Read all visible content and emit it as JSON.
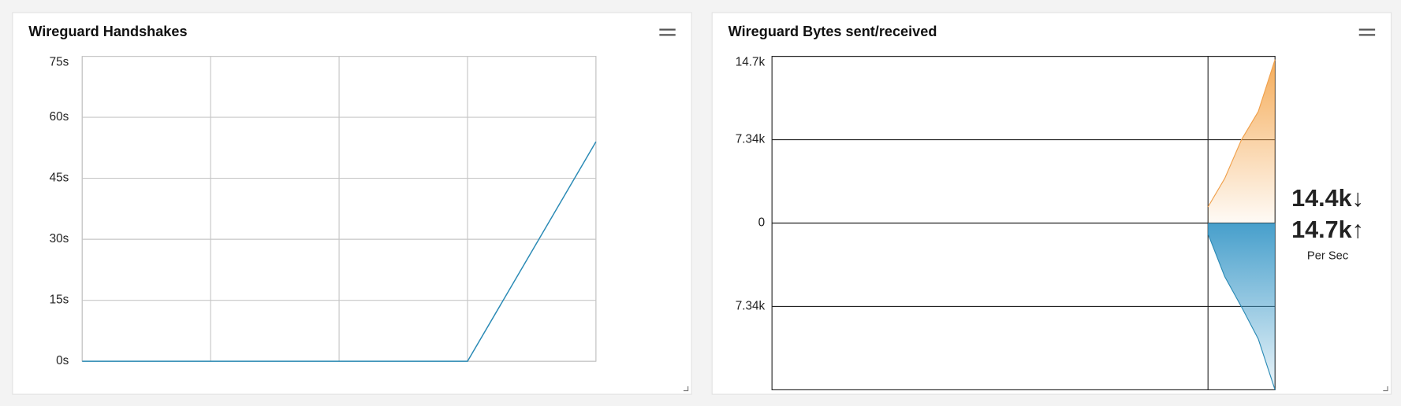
{
  "chart_data": [
    {
      "type": "line",
      "title": "Wireguard Handshakes",
      "categories": [
        null,
        null,
        null,
        null,
        null
      ],
      "series": [
        {
          "color": "#2a8ab5",
          "values": [
            0,
            0,
            0,
            0,
            54
          ]
        }
      ],
      "ylim": [
        0,
        75
      ],
      "yticks": [
        {
          "value": 0,
          "label": "0s"
        },
        {
          "value": 15,
          "label": "15s"
        },
        {
          "value": 30,
          "label": "30s"
        },
        {
          "value": 45,
          "label": "45s"
        },
        {
          "value": 60,
          "label": "60s"
        },
        {
          "value": 75,
          "label": "75s"
        }
      ],
      "grid": true
    },
    {
      "type": "area",
      "title": "Wireguard Bytes sent/received",
      "categories": [
        null,
        null,
        null,
        null,
        null,
        null,
        null,
        null,
        null,
        null,
        null,
        null,
        null,
        null,
        null,
        null,
        null,
        null,
        null,
        null,
        null,
        null,
        null,
        null,
        null,
        null,
        null,
        null,
        null,
        null,
        null
      ],
      "series": [
        {
          "color": "#f0a04b",
          "values": [
            null,
            null,
            null,
            null,
            null,
            null,
            null,
            null,
            null,
            null,
            null,
            null,
            null,
            null,
            null,
            null,
            null,
            null,
            null,
            null,
            null,
            null,
            null,
            null,
            null,
            null,
            1413,
            3925,
            7340,
            9813,
            14400
          ]
        },
        {
          "color": "#2a8ab5",
          "values": [
            null,
            null,
            null,
            null,
            null,
            null,
            null,
            null,
            null,
            null,
            null,
            null,
            null,
            null,
            null,
            null,
            null,
            null,
            null,
            null,
            null,
            null,
            null,
            null,
            null,
            null,
            -940,
            -4710,
            -7380,
            -10200,
            -14680
          ]
        }
      ],
      "ylim": [
        -14680,
        14680
      ],
      "yticks": [
        {
          "value": 14680,
          "label": "14.7k"
        },
        {
          "value": 7340,
          "label": "7.34k"
        },
        0,
        {
          "value": -7340,
          "label": "7.34k"
        }
      ],
      "grid": true,
      "annotations": [
        "14.4k↓",
        "14.7k↑",
        "Per Sec"
      ]
    }
  ]
}
